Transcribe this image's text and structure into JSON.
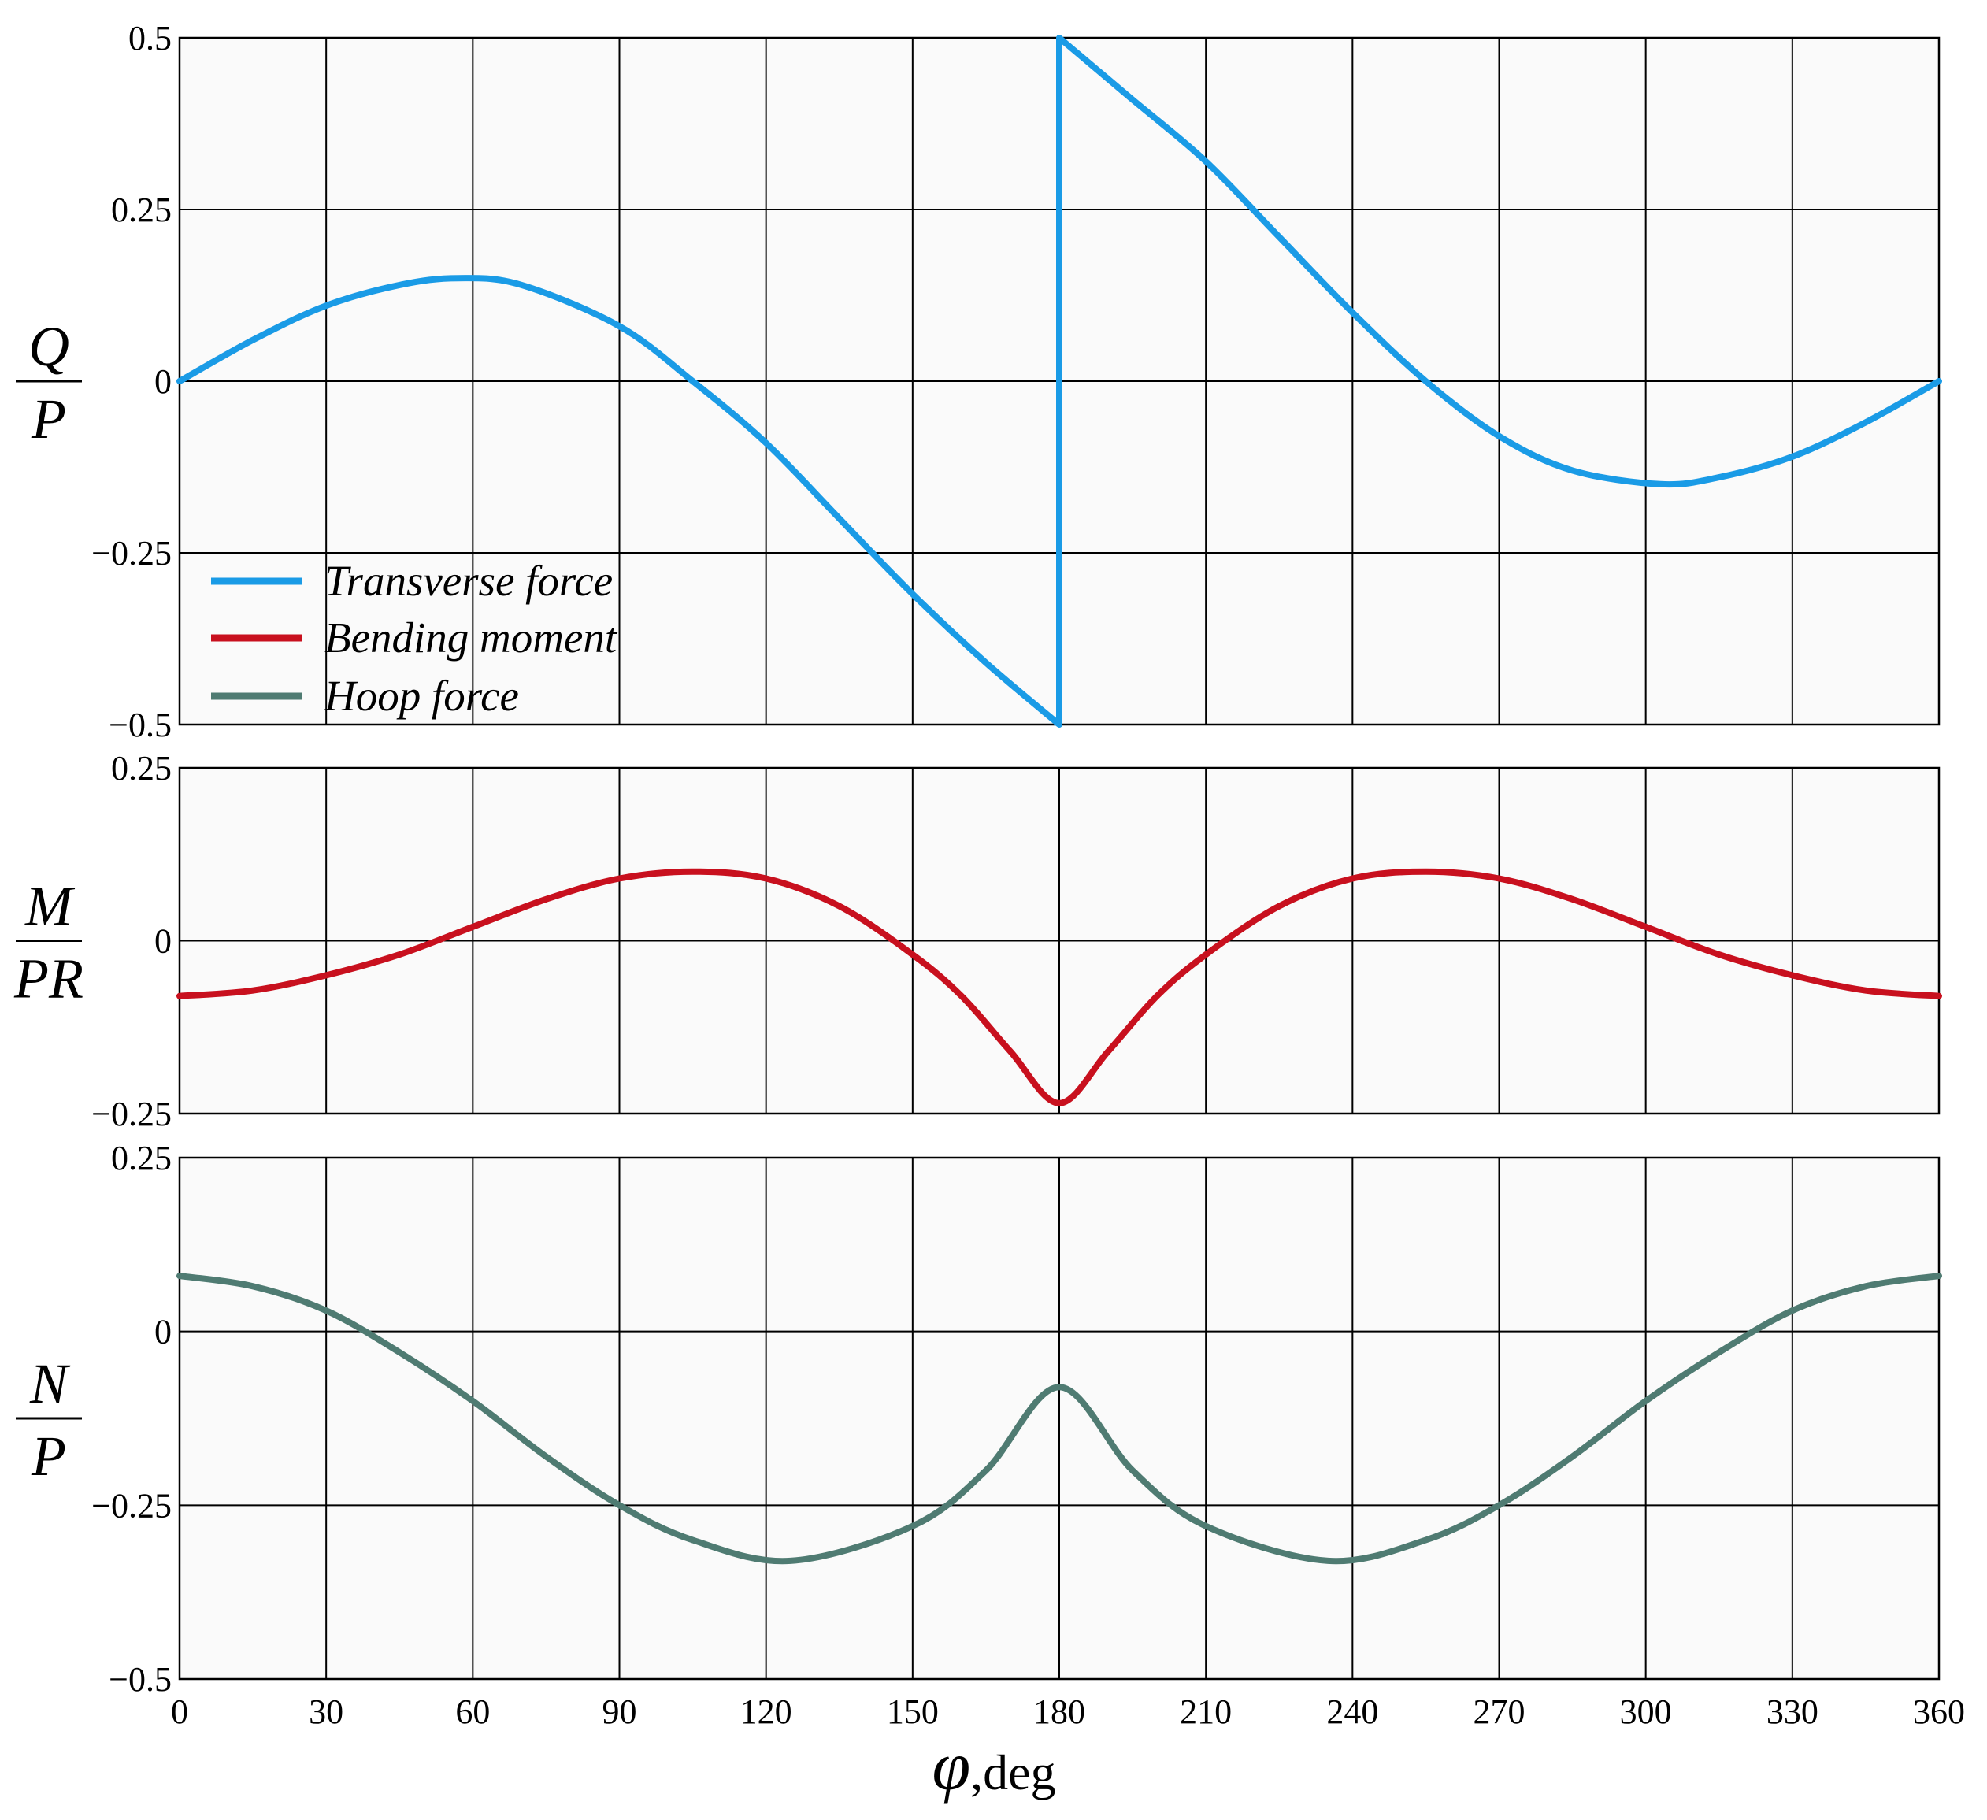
{
  "chart_data": [
    {
      "type": "line",
      "id": "transverse",
      "ylabel_num": "Q",
      "ylabel_den": "P",
      "ylim": [
        -0.5,
        0.5
      ],
      "yticks": [
        -0.5,
        -0.25,
        0,
        0.25,
        0.5
      ],
      "ytick_labels": [
        "−0.5",
        "−0.25",
        "0",
        "0.25",
        "0.5"
      ],
      "series": [
        {
          "name": "Transverse force",
          "color": "#1a9be6",
          "x": [
            0,
            15,
            30,
            45,
            57,
            70,
            90,
            105,
            120,
            135,
            150,
            165,
            180,
            180,
            195,
            210,
            225,
            240,
            255,
            270,
            285,
            303,
            315,
            330,
            345,
            360
          ],
          "y": [
            0,
            0.06,
            0.11,
            0.14,
            0.15,
            0.14,
            0.08,
            0.0,
            -0.09,
            -0.2,
            -0.31,
            -0.41,
            -0.5,
            0.5,
            0.41,
            0.32,
            0.21,
            0.1,
            0.0,
            -0.08,
            -0.13,
            -0.15,
            -0.14,
            -0.11,
            -0.06,
            0
          ]
        }
      ]
    },
    {
      "type": "line",
      "id": "bending",
      "ylabel_num": "M",
      "ylabel_den": "PR",
      "ylim": [
        -0.25,
        0.25
      ],
      "yticks": [
        -0.25,
        0,
        0.25
      ],
      "ytick_labels": [
        "−0.25",
        "0",
        "0.25"
      ],
      "series": [
        {
          "name": "Bending moment",
          "color": "#c8101e",
          "x": [
            0,
            15,
            30,
            45,
            60,
            75,
            90,
            105,
            120,
            135,
            150,
            160,
            170,
            180,
            190,
            200,
            210,
            225,
            240,
            255,
            270,
            285,
            300,
            315,
            330,
            345,
            360
          ],
          "y": [
            -0.08,
            -0.072,
            -0.05,
            -0.02,
            0.02,
            0.06,
            0.09,
            0.1,
            0.09,
            0.05,
            -0.02,
            -0.08,
            -0.16,
            -0.235,
            -0.16,
            -0.08,
            -0.02,
            0.05,
            0.09,
            0.1,
            0.09,
            0.06,
            0.02,
            -0.02,
            -0.05,
            -0.072,
            -0.08
          ]
        }
      ]
    },
    {
      "type": "line",
      "id": "hoop",
      "ylabel_num": "N",
      "ylabel_den": "P",
      "ylim": [
        -0.5,
        0.25
      ],
      "yticks": [
        -0.5,
        -0.25,
        0,
        0.25
      ],
      "ytick_labels": [
        "−0.5",
        "−0.25",
        "0",
        "0.25"
      ],
      "xlim": [
        0,
        360
      ],
      "xticks": [
        0,
        30,
        60,
        90,
        120,
        150,
        180,
        210,
        240,
        270,
        300,
        330,
        360
      ],
      "xtick_labels": [
        "0",
        "30",
        "60",
        "90",
        "120",
        "150",
        "180",
        "210",
        "240",
        "270",
        "300",
        "330",
        "360"
      ],
      "series": [
        {
          "name": "Hoop force",
          "color": "#4f7b72",
          "x": [
            0,
            15,
            30,
            45,
            60,
            75,
            90,
            105,
            125,
            150,
            165,
            180,
            195,
            210,
            235,
            255,
            270,
            285,
            300,
            315,
            330,
            345,
            360
          ],
          "y": [
            0.08,
            0.065,
            0.03,
            -0.03,
            -0.1,
            -0.18,
            -0.25,
            -0.3,
            -0.33,
            -0.28,
            -0.2,
            -0.08,
            -0.2,
            -0.28,
            -0.33,
            -0.3,
            -0.25,
            -0.18,
            -0.1,
            -0.03,
            0.03,
            0.065,
            0.08
          ]
        }
      ]
    }
  ],
  "legend": {
    "placement": "lower-left of top panel",
    "entries": [
      {
        "label": "Transverse force",
        "color": "#1a9be6"
      },
      {
        "label": "Bending moment",
        "color": "#c8101e"
      },
      {
        "label": "Hoop force",
        "color": "#4f7b72"
      }
    ]
  },
  "xlabel": {
    "symbol": "φ",
    "unit": ",deg"
  }
}
